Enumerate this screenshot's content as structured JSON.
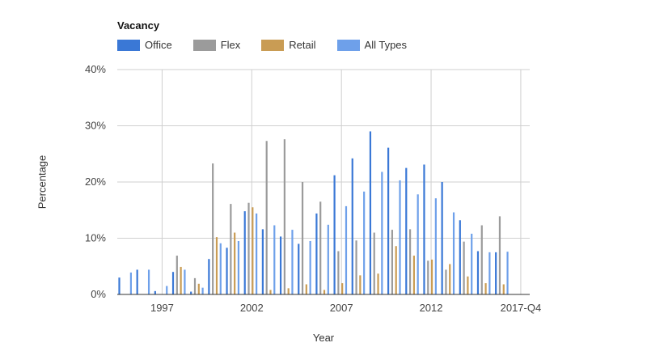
{
  "chart_data": {
    "type": "bar",
    "title": "Vacancy",
    "xlabel": "Year",
    "ylabel": "Percentage",
    "ylim": [
      0,
      40
    ],
    "yticks": [
      "0%",
      "10%",
      "20%",
      "30%",
      "40%"
    ],
    "xtick_labels": [
      "1997",
      "2002",
      "2007",
      "2012",
      "2017-Q4"
    ],
    "grid": true,
    "legend_position": "top-left",
    "categories": [
      "1995",
      "1996",
      "1997",
      "1998",
      "1999",
      "2000",
      "2001",
      "2002",
      "2003",
      "2004",
      "2005",
      "2006",
      "2007",
      "2008",
      "2009",
      "2010",
      "2011",
      "2012",
      "2013",
      "2014",
      "2015",
      "2016",
      "2017-Q4"
    ],
    "series": [
      {
        "name": "Office",
        "color": "#3a78d6",
        "values": [
          3.0,
          4.4,
          0.6,
          4.0,
          0.5,
          6.3,
          8.3,
          14.8,
          11.6,
          10.3,
          9.0,
          14.4,
          21.2,
          24.2,
          29.0,
          26.1,
          22.5,
          23.1,
          20.0,
          13.2,
          7.7,
          7.5,
          null
        ]
      },
      {
        "name": "Flex",
        "color": "#9b9b9b",
        "values": [
          null,
          null,
          null,
          6.9,
          2.9,
          23.3,
          16.1,
          16.3,
          27.3,
          27.6,
          20.0,
          16.5,
          7.7,
          9.6,
          11.0,
          11.5,
          11.6,
          6.0,
          4.4,
          9.4,
          12.3,
          13.9,
          null
        ]
      },
      {
        "name": "Retail",
        "color": "#c99c54",
        "values": [
          null,
          null,
          null,
          4.9,
          1.9,
          10.2,
          11.0,
          15.5,
          0.8,
          1.1,
          1.8,
          0.8,
          2.0,
          3.4,
          3.7,
          8.6,
          6.9,
          6.2,
          5.4,
          3.2,
          2.0,
          1.8,
          null
        ]
      },
      {
        "name": "All Types",
        "color": "#6ea0ea",
        "values": [
          3.9,
          4.4,
          1.5,
          4.4,
          1.2,
          9.1,
          9.5,
          14.4,
          12.3,
          11.5,
          9.5,
          12.4,
          15.7,
          18.3,
          21.8,
          20.3,
          17.8,
          17.1,
          14.6,
          10.8,
          7.5,
          7.6,
          null
        ]
      }
    ]
  }
}
